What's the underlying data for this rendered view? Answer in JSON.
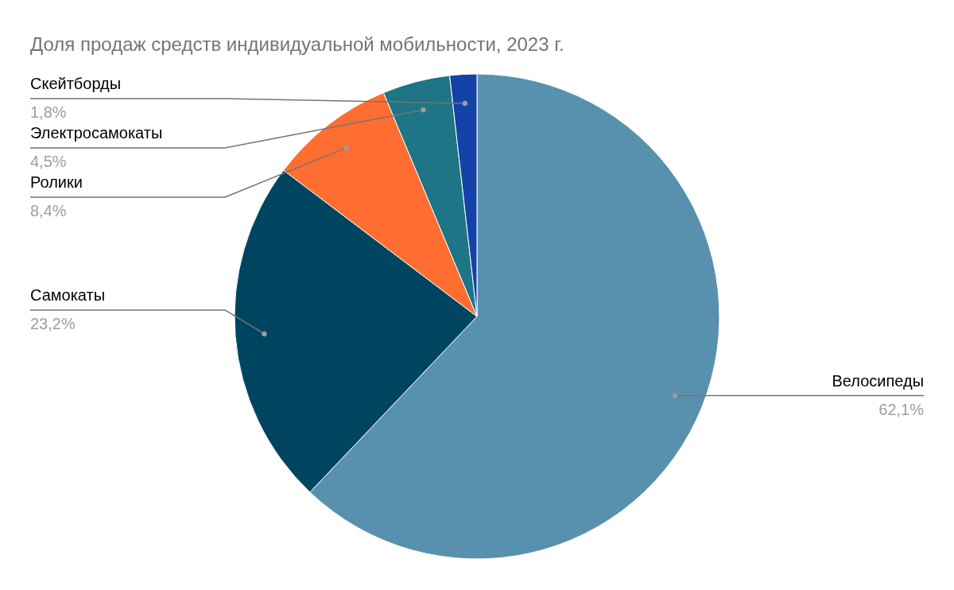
{
  "chart_data": {
    "type": "pie",
    "title": "Доля продаж средств индивидуальной мобильности, 2023 г.",
    "categories": [
      "Велосипеды",
      "Самокаты",
      "Ролики",
      "Электросамокаты",
      "Скейтборды"
    ],
    "values": [
      62.1,
      23.2,
      8.4,
      4.5,
      1.8
    ],
    "colors": [
      "#5891ae",
      "#004560",
      "#ff6d31",
      "#1e7585",
      "#1443a8"
    ],
    "value_labels": [
      "62,1%",
      "23,2%",
      "8,4%",
      "4,5%",
      "1,8%"
    ]
  }
}
